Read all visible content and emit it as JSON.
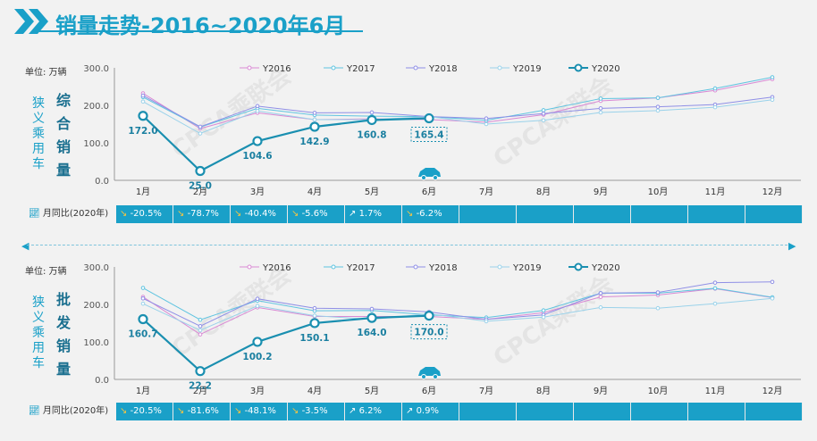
{
  "title": "销量走势-2016~2020年6月",
  "colors": {
    "Y2016": "#d98ad4",
    "Y2017": "#5fc4e0",
    "Y2018": "#8f8fe6",
    "Y2019": "#9ad2ea",
    "Y2020": "#1a8fb0",
    "accent": "#1aa0c8"
  },
  "chart_data": [
    {
      "type": "line",
      "unit_label": "单位: 万辆",
      "side_label_vertical": "狭义乘用车",
      "side_label_big": "综合销量",
      "months": [
        "1月",
        "2月",
        "3月",
        "4月",
        "5月",
        "6月",
        "7月",
        "8月",
        "9月",
        "10月",
        "11月",
        "12月"
      ],
      "yticks": [
        "300.0",
        "200.0",
        "100.0",
        "0.0"
      ],
      "ylim": [
        0,
        300
      ],
      "series": [
        {
          "name": "Y2016",
          "values": [
            232,
            138,
            180,
            162,
            164,
            162,
            155,
            175,
            212,
            220,
            240,
            270
          ]
        },
        {
          "name": "Y2017",
          "values": [
            222,
            142,
            192,
            174,
            171,
            170,
            160,
            187,
            218,
            220,
            245,
            275
          ]
        },
        {
          "name": "Y2018",
          "values": [
            226,
            143,
            198,
            180,
            181,
            170,
            165,
            178,
            192,
            196,
            202,
            222
          ]
        },
        {
          "name": "Y2019",
          "values": [
            210,
            125,
            185,
            162,
            162,
            170,
            150,
            160,
            181,
            186,
            195,
            215
          ]
        },
        {
          "name": "Y2020",
          "values": [
            172.0,
            25.0,
            104.6,
            142.9,
            160.8,
            165.4
          ]
        }
      ],
      "labels_2020": [
        "172.0",
        "25.0",
        "104.6",
        "142.9",
        "160.8",
        "165.4"
      ],
      "yoy_label": "月同比(2020年)",
      "yoy": [
        "-20.5%",
        "-78.7%",
        "-40.4%",
        "-5.6%",
        "1.7%",
        "-6.2%",
        "",
        "",
        "",
        "",
        "",
        ""
      ]
    },
    {
      "type": "line",
      "unit_label": "单位: 万辆",
      "side_label_vertical": "狭义乘用车",
      "side_label_big": "批发销量",
      "months": [
        "1月",
        "2月",
        "3月",
        "4月",
        "5月",
        "6月",
        "7月",
        "8月",
        "9月",
        "10月",
        "11月",
        "12月"
      ],
      "yticks": [
        "300.0",
        "200.0",
        "100.0",
        "0.0"
      ],
      "ylim": [
        0,
        300
      ],
      "series": [
        {
          "name": "Y2016",
          "values": [
            220,
            120,
            192,
            168,
            168,
            168,
            160,
            178,
            220,
            225,
            242,
            218
          ]
        },
        {
          "name": "Y2017",
          "values": [
            244,
            159,
            210,
            183,
            184,
            172,
            165,
            184,
            230,
            230,
            243,
            219
          ]
        },
        {
          "name": "Y2018",
          "values": [
            216,
            142,
            215,
            190,
            188,
            180,
            160,
            172,
            230,
            232,
            258,
            260
          ]
        },
        {
          "name": "Y2019",
          "values": [
            202,
            131,
            196,
            170,
            160,
            175,
            155,
            166,
            192,
            190,
            202,
            216
          ]
        },
        {
          "name": "Y2020",
          "values": [
            160.7,
            22.2,
            100.2,
            150.1,
            164.0,
            170.0
          ]
        }
      ],
      "labels_2020": [
        "160.7",
        "22.2",
        "100.2",
        "150.1",
        "164.0",
        "170.0"
      ],
      "yoy_label": "月同比(2020年)",
      "yoy": [
        "-20.5%",
        "-81.6%",
        "-48.1%",
        "-3.5%",
        "6.2%",
        "0.9%",
        "",
        "",
        "",
        "",
        "",
        ""
      ]
    }
  ]
}
